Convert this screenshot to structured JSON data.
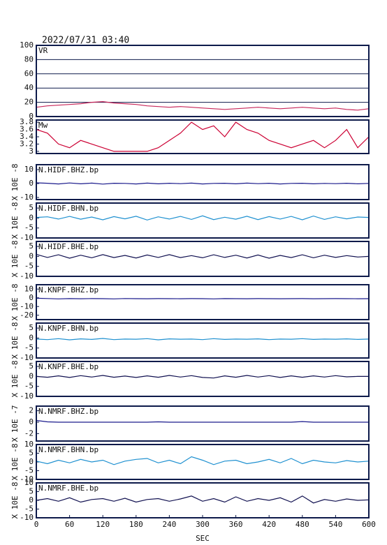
{
  "chart_data": [
    {
      "type": "line",
      "title": "2022/07/31 03:40",
      "label": "VR",
      "xlim": [
        0,
        600
      ],
      "ylim": [
        0,
        100
      ],
      "yticks": [
        0,
        20,
        40,
        60,
        80,
        100
      ],
      "grid": true,
      "x": [
        0,
        20,
        40,
        60,
        80,
        100,
        120,
        140,
        160,
        180,
        200,
        220,
        240,
        260,
        280,
        300,
        320,
        340,
        360,
        380,
        400,
        420,
        440,
        460,
        480,
        500,
        520,
        540,
        560,
        580,
        600
      ],
      "series": [
        {
          "color": "#c8265a",
          "values": [
            13,
            15,
            16,
            17,
            18,
            20,
            21,
            19,
            18,
            17,
            15,
            14,
            13,
            14,
            13,
            12,
            11,
            10,
            11,
            12,
            13,
            12,
            11,
            12,
            13,
            12,
            11,
            12,
            10,
            9,
            11
          ]
        }
      ]
    },
    {
      "type": "line",
      "label": "Mw",
      "xlim": [
        0,
        600
      ],
      "ylim": [
        2.94,
        3.86
      ],
      "yticks": [
        3.0,
        3.2,
        3.4,
        3.6,
        3.8
      ],
      "x": [
        0,
        20,
        40,
        60,
        80,
        100,
        120,
        140,
        160,
        180,
        200,
        220,
        240,
        260,
        280,
        300,
        320,
        340,
        360,
        380,
        400,
        420,
        440,
        460,
        480,
        500,
        520,
        540,
        560,
        580,
        600
      ],
      "series": [
        {
          "color": "#cc0033",
          "values": [
            3.6,
            3.5,
            3.2,
            3.1,
            3.3,
            3.2,
            3.1,
            3.0,
            3.0,
            3.0,
            3.0,
            3.1,
            3.3,
            3.5,
            3.8,
            3.6,
            3.7,
            3.4,
            3.8,
            3.6,
            3.5,
            3.3,
            3.2,
            3.1,
            3.2,
            3.3,
            3.1,
            3.3,
            3.6,
            3.1,
            3.4
          ]
        }
      ]
    },
    {
      "type": "line",
      "label": "N.HIDF.BHZ.bp",
      "ylabel": "X 10E -8",
      "xlim": [
        0,
        600
      ],
      "ylim": [
        -11.5,
        13.5
      ],
      "yticks": [
        10,
        0,
        -10
      ],
      "x": [
        0,
        20,
        40,
        60,
        80,
        100,
        120,
        140,
        160,
        180,
        200,
        220,
        240,
        260,
        280,
        300,
        320,
        340,
        360,
        380,
        400,
        420,
        440,
        460,
        480,
        500,
        520,
        540,
        560,
        580,
        600
      ],
      "series": [
        {
          "color": "#1a1a8c",
          "values": [
            0.5,
            0.2,
            -0.3,
            0.4,
            -0.2,
            0.3,
            -0.4,
            0.2,
            0.1,
            -0.3,
            0.3,
            -0.2,
            0.2,
            -0.1,
            0.3,
            -0.3,
            0.1,
            0.2,
            -0.2,
            0.3,
            -0.1,
            0.2,
            -0.3,
            0.1,
            0.2,
            -0.2,
            0.1,
            -0.1,
            0.2,
            -0.2,
            0.1
          ]
        }
      ]
    },
    {
      "type": "line",
      "label": "N.HIDF.BHN.bp",
      "ylabel": "X 10E -8",
      "xlim": [
        0,
        600
      ],
      "ylim": [
        -10,
        7.5
      ],
      "yticks": [
        5,
        0,
        -5,
        -10
      ],
      "x": [
        0,
        20,
        40,
        60,
        80,
        100,
        120,
        140,
        160,
        180,
        200,
        220,
        240,
        260,
        280,
        300,
        320,
        340,
        360,
        380,
        400,
        420,
        440,
        460,
        480,
        500,
        520,
        540,
        560,
        580,
        600
      ],
      "series": [
        {
          "color": "#1e90d0",
          "values": [
            0.3,
            0.6,
            -0.5,
            0.8,
            -0.6,
            0.5,
            -0.9,
            0.7,
            -0.4,
            0.9,
            -1.0,
            0.6,
            -0.5,
            0.8,
            -0.7,
            1.1,
            -0.8,
            0.4,
            -0.6,
            0.9,
            -0.8,
            0.7,
            -0.5,
            0.8,
            -0.9,
            1.0,
            -0.7,
            0.6,
            -0.4,
            0.5,
            0.3
          ]
        }
      ]
    },
    {
      "type": "line",
      "label": "N.HIDF.BHE.bp",
      "ylabel": "X 10E -8",
      "xlim": [
        0,
        600
      ],
      "ylim": [
        -10,
        7.5
      ],
      "yticks": [
        5,
        0,
        -5,
        -10
      ],
      "x": [
        0,
        20,
        40,
        60,
        80,
        100,
        120,
        140,
        160,
        180,
        200,
        220,
        240,
        260,
        280,
        300,
        320,
        340,
        360,
        380,
        400,
        420,
        440,
        460,
        480,
        500,
        520,
        540,
        560,
        580,
        600
      ],
      "series": [
        {
          "color": "#101050",
          "values": [
            1.0,
            -0.5,
            0.8,
            -0.9,
            0.6,
            -0.7,
            0.9,
            -0.6,
            0.5,
            -0.8,
            0.7,
            -0.5,
            0.9,
            -0.6,
            0.4,
            -0.7,
            0.8,
            -0.5,
            0.6,
            -0.8,
            0.7,
            -0.9,
            0.5,
            -0.6,
            0.8,
            -0.7,
            0.6,
            -0.5,
            0.4,
            -0.3,
            0.0
          ]
        }
      ]
    },
    {
      "type": "line",
      "label": "N.KNPF.BHZ.bp",
      "ylabel": "X 10E -8",
      "xlim": [
        0,
        600
      ],
      "ylim": [
        -25,
        15
      ],
      "yticks": [
        10,
        0,
        -10,
        -20
      ],
      "x": [
        0,
        20,
        40,
        60,
        80,
        100,
        120,
        140,
        160,
        180,
        200,
        220,
        240,
        260,
        280,
        300,
        320,
        340,
        360,
        380,
        400,
        420,
        440,
        460,
        480,
        500,
        520,
        540,
        560,
        580,
        600
      ],
      "series": [
        {
          "color": "#1a1a8c",
          "values": [
            -0.5,
            -0.8,
            -1.2,
            -0.9,
            -1.1,
            -0.9,
            -1.0,
            -1.2,
            -0.8,
            -1.0,
            -1.1,
            -0.9,
            -1.0,
            -1.1,
            -0.9,
            -1.0,
            -1.2,
            -0.9,
            -1.0,
            -1.1,
            -0.9,
            -1.0,
            -1.1,
            -1.0,
            -0.9,
            -1.1,
            -1.0,
            -0.9,
            -1.0,
            -1.1,
            -1.0
          ]
        }
      ]
    },
    {
      "type": "line",
      "label": "N.KNPF.BHN.bp",
      "ylabel": "X 10E -8",
      "xlim": [
        0,
        600
      ],
      "ylim": [
        -10,
        7.5
      ],
      "yticks": [
        5,
        0,
        -5,
        -10
      ],
      "x": [
        0,
        20,
        40,
        60,
        80,
        100,
        120,
        140,
        160,
        180,
        200,
        220,
        240,
        260,
        280,
        300,
        320,
        340,
        360,
        380,
        400,
        420,
        440,
        460,
        480,
        500,
        520,
        540,
        560,
        580,
        600
      ],
      "series": [
        {
          "color": "#1e90d0",
          "values": [
            -0.5,
            -0.8,
            -0.3,
            -0.9,
            -0.4,
            -0.7,
            -0.2,
            -0.8,
            -0.5,
            -0.6,
            -0.3,
            -0.9,
            -0.4,
            -0.6,
            -0.5,
            -0.8,
            -0.3,
            -0.7,
            -0.5,
            -0.6,
            -0.4,
            -0.8,
            -0.5,
            -0.6,
            -0.3,
            -0.7,
            -0.5,
            -0.6,
            -0.4,
            -0.7,
            -0.5
          ]
        }
      ]
    },
    {
      "type": "line",
      "label": "N.KNPF.BHE.bp",
      "ylabel": "X 10E -8",
      "xlim": [
        0,
        600
      ],
      "ylim": [
        -10,
        7.5
      ],
      "yticks": [
        5,
        0,
        -5,
        -10
      ],
      "x": [
        0,
        20,
        40,
        60,
        80,
        100,
        120,
        140,
        160,
        180,
        200,
        220,
        240,
        260,
        280,
        300,
        320,
        340,
        360,
        380,
        400,
        420,
        440,
        460,
        480,
        500,
        520,
        540,
        560,
        580,
        600
      ],
      "series": [
        {
          "color": "#101050",
          "values": [
            0.0,
            -0.4,
            0.3,
            -0.5,
            0.4,
            -0.3,
            0.5,
            -0.4,
            0.2,
            -0.5,
            0.3,
            -0.4,
            0.5,
            -0.3,
            0.4,
            -0.5,
            -0.8,
            0.3,
            -0.4,
            0.5,
            -0.3,
            0.4,
            -0.5,
            0.3,
            -0.4,
            0.3,
            -0.3,
            0.4,
            -0.2,
            0.0,
            0.0
          ]
        }
      ]
    },
    {
      "type": "line",
      "label": "N.NMRF.BHZ.bp",
      "ylabel": "X 10E -7",
      "xlim": [
        0,
        600
      ],
      "ylim": [
        -3.3,
        2.8
      ],
      "yticks": [
        2,
        0,
        -2
      ],
      "x": [
        0,
        20,
        40,
        60,
        80,
        100,
        120,
        140,
        160,
        180,
        200,
        220,
        240,
        260,
        280,
        300,
        320,
        340,
        360,
        380,
        400,
        420,
        440,
        460,
        480,
        500,
        520,
        540,
        560,
        580,
        600
      ],
      "series": [
        {
          "color": "#1a1a8c",
          "values": [
            0.3,
            0.05,
            0.0,
            0.0,
            0.0,
            0.0,
            0.0,
            0.0,
            0.0,
            0.0,
            0.0,
            0.05,
            0.0,
            0.0,
            0.0,
            0.0,
            0.0,
            0.0,
            0.0,
            0.0,
            0.0,
            0.0,
            0.0,
            0.0,
            0.1,
            0.0,
            0.0,
            0.0,
            0.0,
            0.0,
            0.0
          ]
        }
      ]
    },
    {
      "type": "line",
      "label": "N.NMRF.BHN.bp",
      "ylabel": "X 10E -8",
      "xlim": [
        0,
        600
      ],
      "ylim": [
        -10,
        10
      ],
      "yticks": [
        10,
        5,
        0,
        -5,
        -10
      ],
      "x": [
        0,
        20,
        40,
        60,
        80,
        100,
        120,
        140,
        160,
        180,
        200,
        220,
        240,
        260,
        280,
        300,
        320,
        340,
        360,
        380,
        400,
        420,
        440,
        460,
        480,
        500,
        520,
        540,
        560,
        580,
        600
      ],
      "series": [
        {
          "color": "#1e90d0",
          "values": [
            0.5,
            -1.0,
            1.0,
            -0.5,
            1.5,
            0.0,
            1.0,
            -1.5,
            0.5,
            1.5,
            2.0,
            -0.5,
            1.0,
            -1.0,
            3.0,
            1.0,
            -1.5,
            0.5,
            1.0,
            -1.0,
            0.0,
            1.5,
            -0.5,
            2.0,
            -1.0,
            1.0,
            0.0,
            -0.5,
            0.8,
            0.0,
            0.5
          ]
        }
      ]
    },
    {
      "type": "line",
      "label": "N.NMRF.BHE.bp",
      "ylabel": "X 10E -8",
      "xlim": [
        0,
        600
      ],
      "ylim": [
        -10,
        10
      ],
      "yticks": [
        10,
        5,
        0,
        -5,
        -10
      ],
      "x": [
        0,
        20,
        40,
        60,
        80,
        100,
        120,
        140,
        160,
        180,
        200,
        220,
        240,
        260,
        280,
        300,
        320,
        340,
        360,
        380,
        400,
        420,
        440,
        460,
        480,
        500,
        520,
        540,
        560,
        580,
        600
      ],
      "series": [
        {
          "color": "#101050",
          "values": [
            0.0,
            1.0,
            -0.5,
            1.5,
            -1.0,
            0.5,
            1.0,
            -0.5,
            1.2,
            -1.0,
            0.5,
            1.0,
            -0.5,
            0.8,
            2.5,
            -0.5,
            1.0,
            -1.0,
            2.0,
            -0.5,
            1.0,
            0.0,
            1.5,
            -1.0,
            2.5,
            -1.5,
            0.5,
            -0.5,
            0.8,
            0.0,
            0.3
          ]
        }
      ],
      "xticks": [
        0,
        60,
        120,
        180,
        240,
        300,
        360,
        420,
        480,
        540,
        600
      ],
      "xlabel": "SEC"
    }
  ]
}
